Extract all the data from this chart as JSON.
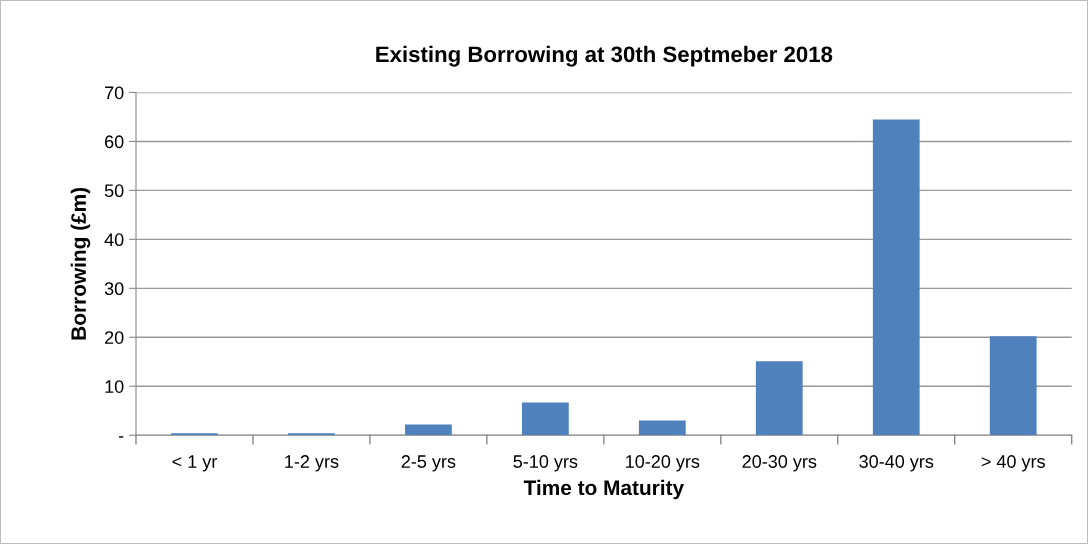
{
  "chart_data": {
    "type": "bar",
    "title": "Existing Borrowing at 30th Septmeber 2018",
    "xlabel": "Time to Maturity",
    "ylabel": "Borrowing (£m)",
    "categories": [
      "< 1 yr",
      "1-2 yrs",
      "2-5 yrs",
      "5-10 yrs",
      "10-20 yrs",
      "20-30 yrs",
      "30-40 yrs",
      "> 40 yrs"
    ],
    "values": [
      0.4,
      0.4,
      2.2,
      6.7,
      3.0,
      15.1,
      64.5,
      20.2
    ],
    "color": "#4f81bd",
    "ylim": [
      0,
      70
    ],
    "yticks": [
      {
        "value": 0,
        "label": "-"
      },
      10,
      20,
      30,
      40,
      50,
      60,
      70
    ],
    "grid": "y"
  }
}
